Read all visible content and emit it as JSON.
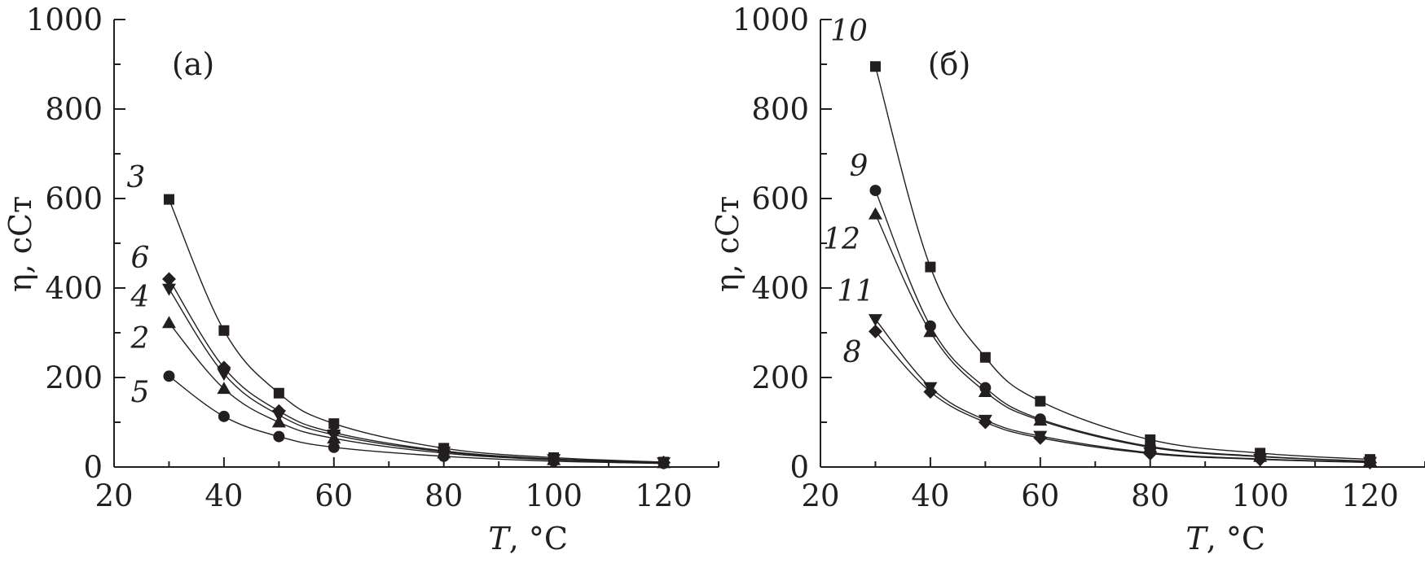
{
  "chart_data": [
    {
      "type": "line",
      "panel_label": "(a)",
      "xlabel_italic": "T",
      "xlabel_unit": ", °C",
      "ylabel": "η, сСт",
      "xlim": [
        20,
        130
      ],
      "ylim": [
        0,
        1000
      ],
      "xticks": [
        20,
        40,
        60,
        80,
        100,
        120
      ],
      "yticks": [
        0,
        200,
        400,
        600,
        800,
        1000
      ],
      "x": [
        30,
        40,
        50,
        60,
        80,
        100,
        120
      ],
      "series": [
        {
          "name": "3",
          "marker": "square",
          "values": [
            598,
            305,
            165,
            97,
            42,
            21,
            11
          ]
        },
        {
          "name": "6",
          "marker": "diamond",
          "values": [
            420,
            222,
            125,
            77,
            36,
            18,
            10
          ]
        },
        {
          "name": "4",
          "marker": "triangle-down",
          "values": [
            398,
            208,
            116,
            72,
            34,
            17,
            10
          ]
        },
        {
          "name": "2",
          "marker": "triangle-up",
          "values": [
            322,
            175,
            100,
            64,
            31,
            16,
            9
          ]
        },
        {
          "name": "5",
          "marker": "circle",
          "values": [
            203,
            113,
            68,
            44,
            24,
            13,
            8
          ]
        }
      ],
      "grid": false,
      "legend": "labels-at-curves"
    },
    {
      "type": "line",
      "panel_label": "(б)",
      "xlabel_italic": "T",
      "xlabel_unit": ", °C",
      "ylabel": "η, сСт",
      "xlim": [
        20,
        130
      ],
      "ylim": [
        0,
        1000
      ],
      "xticks": [
        20,
        40,
        60,
        80,
        100,
        120
      ],
      "yticks": [
        0,
        200,
        400,
        600,
        800,
        1000
      ],
      "x": [
        30,
        40,
        50,
        60,
        80,
        100,
        120
      ],
      "series": [
        {
          "name": "10",
          "marker": "square",
          "values": [
            895,
            447,
            245,
            147,
            61,
            31,
            17
          ]
        },
        {
          "name": "9",
          "marker": "circle",
          "values": [
            618,
            315,
            177,
            107,
            46,
            24,
            13
          ]
        },
        {
          "name": "12",
          "marker": "triangle-up",
          "values": [
            565,
            302,
            168,
            104,
            44,
            23,
            13
          ]
        },
        {
          "name": "11",
          "marker": "triangle-down",
          "values": [
            330,
            178,
            105,
            69,
            32,
            18,
            11
          ]
        },
        {
          "name": "8",
          "marker": "diamond",
          "values": [
            303,
            168,
            100,
            65,
            30,
            17,
            10
          ]
        }
      ],
      "grid": false,
      "legend": "labels-at-curves"
    }
  ]
}
